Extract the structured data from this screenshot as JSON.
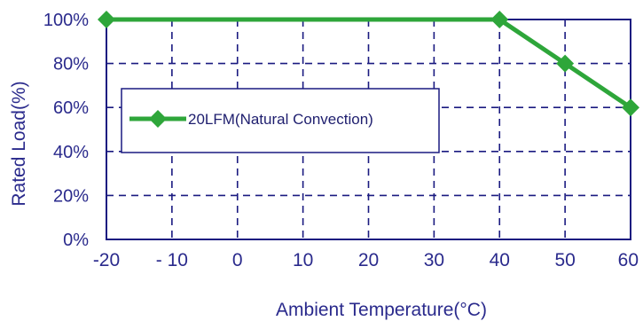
{
  "chart_data": {
    "type": "line",
    "title": "",
    "xlabel": "Ambient Temperature(°C)",
    "ylabel": "Rated Load(%)",
    "x_ticks": [
      "-20",
      "- 10",
      "0",
      "10",
      "20",
      "30",
      "40",
      "50",
      "60"
    ],
    "y_ticks": [
      "100%",
      "80%",
      "60%",
      "40%",
      "20%",
      "0%"
    ],
    "xlim": [
      -20,
      60
    ],
    "ylim": [
      0,
      100
    ],
    "grid": true,
    "legend_position": "left",
    "series": [
      {
        "name": "20LFM(Natural Convection)",
        "color": "#2ea63a",
        "marker": "diamond",
        "x": [
          -20,
          40,
          50,
          60
        ],
        "y": [
          100,
          100,
          80,
          60
        ]
      }
    ]
  },
  "colors": {
    "axis": "#1a1a80",
    "grid": "#1a1a80",
    "text": "#2a2a8c",
    "series": "#2ea63a"
  }
}
